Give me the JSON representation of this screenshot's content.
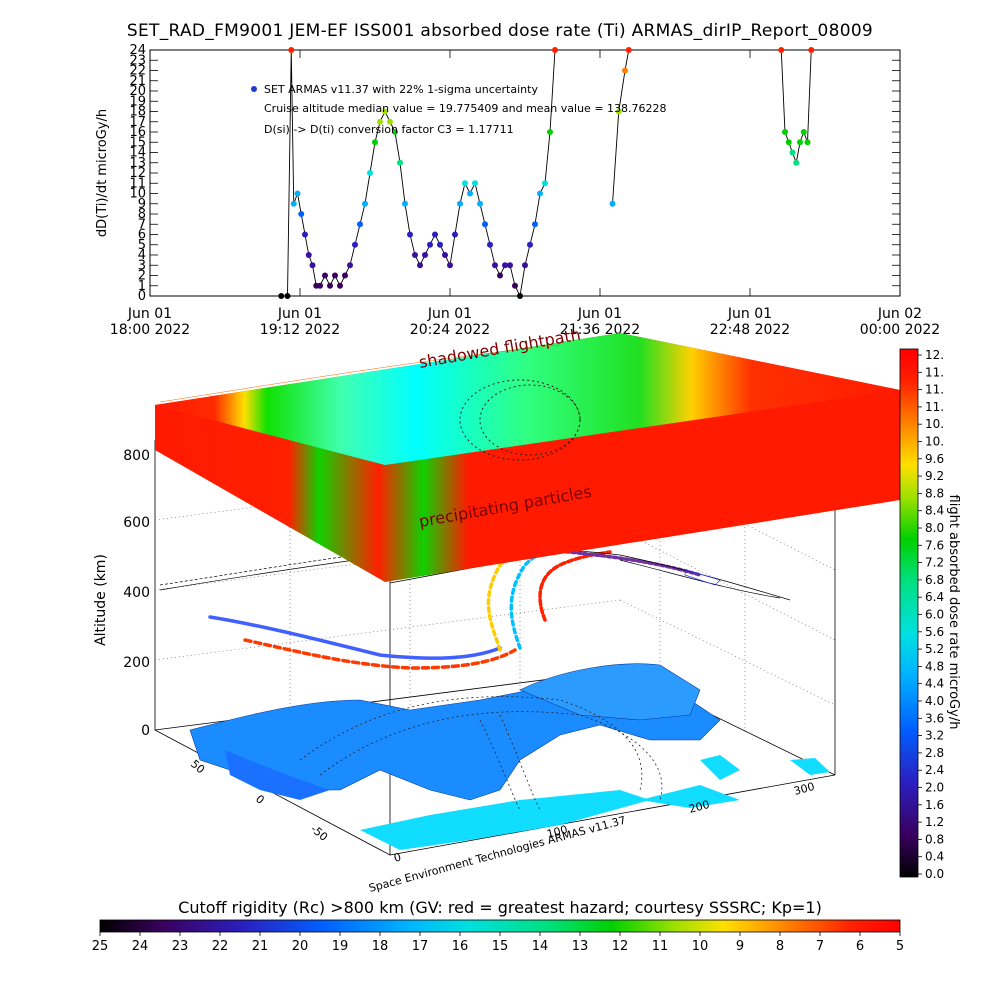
{
  "title": "SET_RAD_FM9001  JEM-EF ISS001 absorbed dose rate (Ti) ARMAS_dirIP_Report_08009",
  "chart_data": [
    {
      "type": "line",
      "ylabel": "dD(Ti)/dt microGy/h",
      "y_ticks": [
        "0",
        "1",
        "2",
        "3",
        "4",
        "5",
        "6",
        "7",
        "8",
        "9",
        "10",
        "11",
        "12",
        "13",
        "14",
        "15",
        "16",
        "17",
        "18",
        "19",
        "20",
        "21",
        "22",
        "23",
        "24"
      ],
      "ylim": [
        0,
        24
      ],
      "x_ticks": [
        {
          "line1": "Jun 01",
          "line2": "18:00 2022"
        },
        {
          "line1": "Jun 01",
          "line2": "19:12 2022"
        },
        {
          "line1": "Jun 01",
          "line2": "20:24 2022"
        },
        {
          "line1": "Jun 01",
          "line2": "21:36 2022"
        },
        {
          "line1": "Jun 01",
          "line2": "22:48 2022"
        },
        {
          "line1": "Jun 02",
          "line2": "00:00 2022"
        }
      ],
      "annotations": [
        "SET ARMAS v11.37 with 22% 1-sigma uncertainty",
        "Cruise altitude median value = 19.775409 and mean value = 138.76228",
        "D(si) -> D(ti) conversion factor C3 = 1.17711"
      ],
      "series_segments": [
        [
          [
            19.05,
            0
          ],
          [
            19.1,
            0
          ],
          [
            19.13,
            24
          ],
          [
            19.15,
            9
          ],
          [
            19.18,
            10
          ],
          [
            19.21,
            8
          ],
          [
            19.24,
            6
          ],
          [
            19.27,
            4
          ],
          [
            19.3,
            3
          ],
          [
            19.33,
            1
          ],
          [
            19.36,
            1
          ],
          [
            19.4,
            2
          ],
          [
            19.44,
            1
          ],
          [
            19.48,
            2
          ],
          [
            19.52,
            1
          ],
          [
            19.56,
            2
          ],
          [
            19.6,
            3
          ],
          [
            19.64,
            5
          ],
          [
            19.68,
            7
          ],
          [
            19.72,
            9
          ],
          [
            19.76,
            12
          ],
          [
            19.8,
            15
          ],
          [
            19.84,
            17
          ],
          [
            19.88,
            18
          ],
          [
            19.92,
            17
          ],
          [
            19.96,
            16
          ],
          [
            20.0,
            13
          ],
          [
            20.04,
            9
          ],
          [
            20.08,
            6
          ],
          [
            20.12,
            4
          ],
          [
            20.16,
            3
          ],
          [
            20.2,
            4
          ],
          [
            20.24,
            5
          ],
          [
            20.28,
            6
          ],
          [
            20.32,
            5
          ],
          [
            20.36,
            4
          ],
          [
            20.4,
            3
          ],
          [
            20.44,
            6
          ],
          [
            20.48,
            9
          ],
          [
            20.52,
            11
          ],
          [
            20.56,
            10
          ],
          [
            20.6,
            11
          ],
          [
            20.64,
            9
          ],
          [
            20.68,
            7
          ],
          [
            20.72,
            5
          ],
          [
            20.76,
            3
          ],
          [
            20.8,
            2
          ],
          [
            20.84,
            3
          ],
          [
            20.88,
            3
          ],
          [
            20.92,
            1
          ],
          [
            20.96,
            0
          ],
          [
            21.0,
            3
          ],
          [
            21.04,
            5
          ],
          [
            21.08,
            7
          ],
          [
            21.12,
            10
          ],
          [
            21.16,
            11
          ],
          [
            21.2,
            16
          ],
          [
            21.24,
            24
          ]
        ],
        [
          [
            21.7,
            9
          ],
          [
            21.75,
            18
          ],
          [
            21.8,
            22
          ],
          [
            21.83,
            24
          ]
        ],
        [
          [
            23.05,
            24
          ],
          [
            23.08,
            16
          ],
          [
            23.11,
            15
          ],
          [
            23.14,
            14
          ],
          [
            23.17,
            13
          ],
          [
            23.2,
            15
          ],
          [
            23.23,
            16
          ],
          [
            23.26,
            15
          ],
          [
            23.29,
            24
          ]
        ]
      ],
      "x_hours_range": [
        18,
        24
      ]
    },
    {
      "type": "heatmap",
      "ylabel": "Altitude (km)",
      "z_ticks": [
        "0",
        "200",
        "400",
        "600",
        "800"
      ],
      "lat_ticks": [
        "50",
        "0",
        "-50"
      ],
      "lon_ticks": [
        "0",
        "100",
        "200",
        "300"
      ],
      "annotations": [
        "shadowed flightpath",
        "precipitating particles"
      ],
      "credit": "Space Environment Technologies ARMAS v11.37"
    },
    {
      "type": "colorbar",
      "label": "flight absorbed dose rate microGy/h",
      "ticks": [
        "0.0",
        "0.4",
        "0.8",
        "1.2",
        "1.6",
        "2.0",
        "2.4",
        "2.8",
        "3.2",
        "3.6",
        "4.0",
        "4.4",
        "4.8",
        "5.2",
        "5.6",
        "6.0",
        "6.4",
        "6.8",
        "7.2",
        "7.6",
        "8.0",
        "8.4",
        "8.8",
        "9.2",
        "9.6",
        "10.",
        "10.",
        "11.",
        "11.",
        "11.",
        "12."
      ]
    },
    {
      "type": "colorbar",
      "label": "Cutoff rigidity (Rc) >800 km (GV: red = greatest hazard; courtesy SSSRC; Kp=1)",
      "ticks": [
        "25",
        "24",
        "23",
        "22",
        "21",
        "20",
        "19",
        "18",
        "17",
        "16",
        "15",
        "14",
        "13",
        "12",
        "11",
        "10",
        "9",
        "8",
        "7",
        "6",
        "5"
      ]
    }
  ]
}
